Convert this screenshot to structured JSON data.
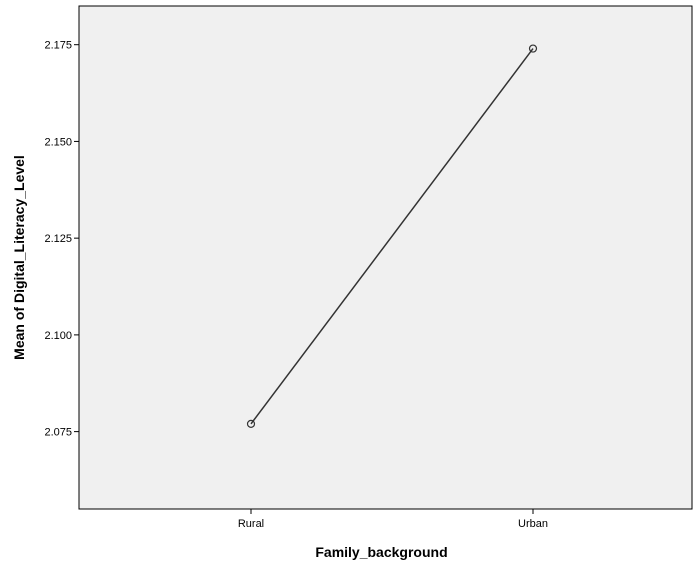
{
  "chart_data": {
    "type": "line",
    "title": "",
    "xlabel": "Family_background",
    "ylabel": "Mean of Digital_Literacy_Level",
    "categories": [
      "Rural",
      "Urban"
    ],
    "series": [
      {
        "values": [
          2.077,
          2.174
        ]
      }
    ],
    "ylim": [
      2.055,
      2.185
    ],
    "yticks": [
      "2.075",
      "2.100",
      "2.125",
      "2.150",
      "2.175"
    ],
    "grid": false,
    "legend": "none",
    "colors": {
      "plot_background": "#f0f0f0",
      "line": "#333333",
      "axis": "#000000"
    }
  }
}
